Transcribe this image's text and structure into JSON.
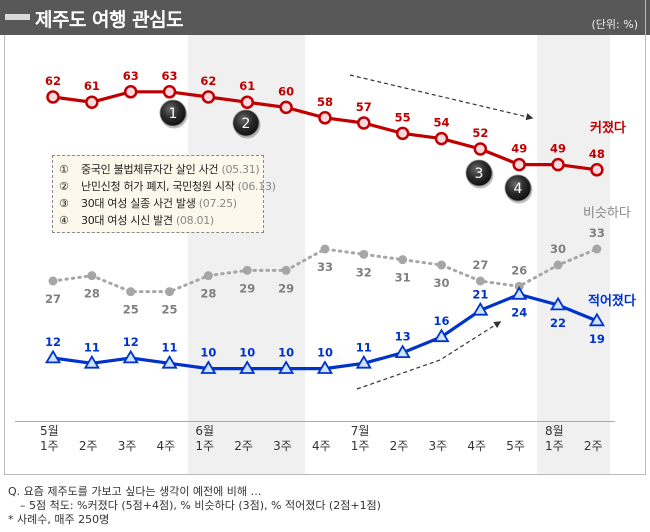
{
  "header": {
    "title": "제주도 여행 관심도",
    "unit": "(단위: %)"
  },
  "legend": {
    "items": [
      {
        "num": "①",
        "text": "중국인 불법체류자간 살인 사건",
        "date": "(05.31)"
      },
      {
        "num": "②",
        "text": "난민신청 허가 폐지, 국민청원 시작",
        "date": "(06.13)"
      },
      {
        "num": "③",
        "text": "30대 여성 실종 사건 발생",
        "date": "(07.25)"
      },
      {
        "num": "④",
        "text": "30대 여성 시신 발견",
        "date": "(08.01)"
      }
    ]
  },
  "footer": {
    "question": "Q. 요즘 제주도를 가보고 싶다는 생각이 예전에 비해 …",
    "scale": "– 5점 척도: %커졌다 (5점+4점), % 비슷하다 (3점), % 적어졌다 (2점+1점)",
    "sample": "* 사례수, 매주 250명"
  },
  "chart_data": {
    "type": "line",
    "title": "제주도 여행 관심도",
    "unit": "(단위: %)",
    "months": [
      {
        "label": "5월",
        "start_index": 0
      },
      {
        "label": "6월",
        "start_index": 4
      },
      {
        "label": "7월",
        "start_index": 8
      },
      {
        "label": "8월",
        "start_index": 13
      }
    ],
    "categories": [
      "1주",
      "2주",
      "3주",
      "4주",
      "1주",
      "2주",
      "3주",
      "4주",
      "1주",
      "2주",
      "3주",
      "4주",
      "5주",
      "1주",
      "2주"
    ],
    "shaded_months": [
      "6월",
      "8월"
    ],
    "series": [
      {
        "name": "커졌다",
        "color": "#c00000",
        "marker": "circle",
        "style": "solid",
        "values": [
          62,
          61,
          63,
          63,
          62,
          61,
          60,
          58,
          57,
          55,
          54,
          52,
          49,
          49,
          48
        ]
      },
      {
        "name": "비슷하다",
        "color": "#a6a6a6",
        "marker": "dot",
        "style": "dotted",
        "values": [
          27,
          28,
          25,
          25,
          28,
          29,
          29,
          33,
          32,
          31,
          30,
          27,
          26,
          30,
          33
        ]
      },
      {
        "name": "적어졌다",
        "color": "#0033cc",
        "marker": "triangle",
        "style": "solid",
        "values": [
          12,
          11,
          12,
          11,
          10,
          10,
          10,
          10,
          11,
          13,
          16,
          21,
          24,
          22,
          19
        ]
      }
    ],
    "event_markers": [
      {
        "label": "1",
        "near_index": 3
      },
      {
        "label": "2",
        "near_index": 5
      },
      {
        "label": "3",
        "near_index": 11
      },
      {
        "label": "4",
        "near_index": 12
      }
    ],
    "trend_arrows": [
      {
        "series": "커졌다",
        "direction": "down",
        "from_index": 7,
        "to_index": 12
      },
      {
        "series": "적어졌다",
        "direction": "up",
        "from_index": 8,
        "to_index": 12
      }
    ]
  }
}
